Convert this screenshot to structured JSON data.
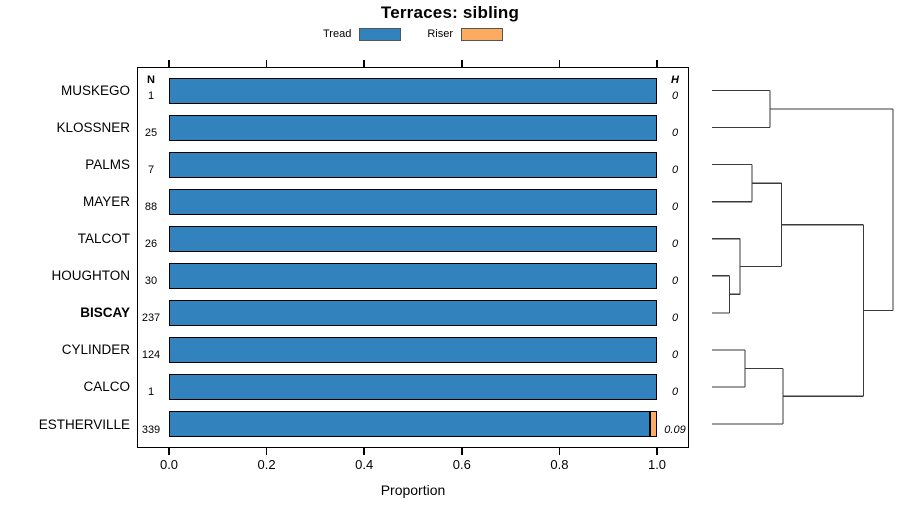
{
  "title": "Terraces: sibling",
  "legend": {
    "items": [
      {
        "label": "Tread",
        "color": "#3182BD"
      },
      {
        "label": "Riser",
        "color": "#FCAB60"
      }
    ]
  },
  "columns": {
    "n_header": "N",
    "h_header": "H"
  },
  "xaxis": {
    "label": "Proportion",
    "ticks": [
      "0.0",
      "0.2",
      "0.4",
      "0.6",
      "0.8",
      "1.0"
    ],
    "range": [
      0,
      1
    ]
  },
  "chart_data": {
    "type": "bar",
    "orientation": "horizontal",
    "stacked": true,
    "title": "Terraces: sibling",
    "xlabel": "Proportion",
    "xlim": [
      0,
      1
    ],
    "categories": [
      "MUSKEGO",
      "KLOSSNER",
      "PALMS",
      "MAYER",
      "TALCOT",
      "HOUGHTON",
      "BISCAY",
      "CYLINDER",
      "CALCO",
      "ESTHERVILLE"
    ],
    "bold_category": "BISCAY",
    "series": [
      {
        "name": "Tread",
        "color": "#3182BD",
        "values": [
          1,
          1,
          1,
          1,
          1,
          1,
          1,
          1,
          1,
          0.985
        ]
      },
      {
        "name": "Riser",
        "color": "#FCAB60",
        "values": [
          0,
          0,
          0,
          0,
          0,
          0,
          0,
          0,
          0,
          0.015
        ]
      }
    ],
    "n_values": [
      1,
      25,
      7,
      88,
      26,
      30,
      237,
      124,
      1,
      339
    ],
    "h_values": [
      "0",
      "0",
      "0",
      "0",
      "0",
      "0",
      "0",
      "0",
      "0",
      "0.09"
    ],
    "legend_position": "top",
    "grid": false,
    "dendrogram": {
      "side": "right",
      "height_scale": "normalized-0-to-1-no-axis-shown",
      "merges": [
        {
          "a": "MUSKEGO",
          "b": "KLOSSNER",
          "h": 0.32
        },
        {
          "a": "PALMS",
          "b": "MAYER",
          "h": 0.221
        },
        {
          "a": "HOUGHTON",
          "b": "BISCAY",
          "h": 0.097
        },
        {
          "a": "TALCOT",
          "b": "@2",
          "h": 0.155
        },
        {
          "a": "@1",
          "b": "@3",
          "h": 0.384
        },
        {
          "a": "CYLINDER",
          "b": "CALCO",
          "h": 0.182
        },
        {
          "a": "@5",
          "b": "ESTHERVILLE",
          "h": 0.392
        },
        {
          "a": "@4",
          "b": "@6",
          "h": 0.837
        },
        {
          "a": "@0",
          "b": "@7",
          "h": 1.0
        }
      ]
    }
  }
}
